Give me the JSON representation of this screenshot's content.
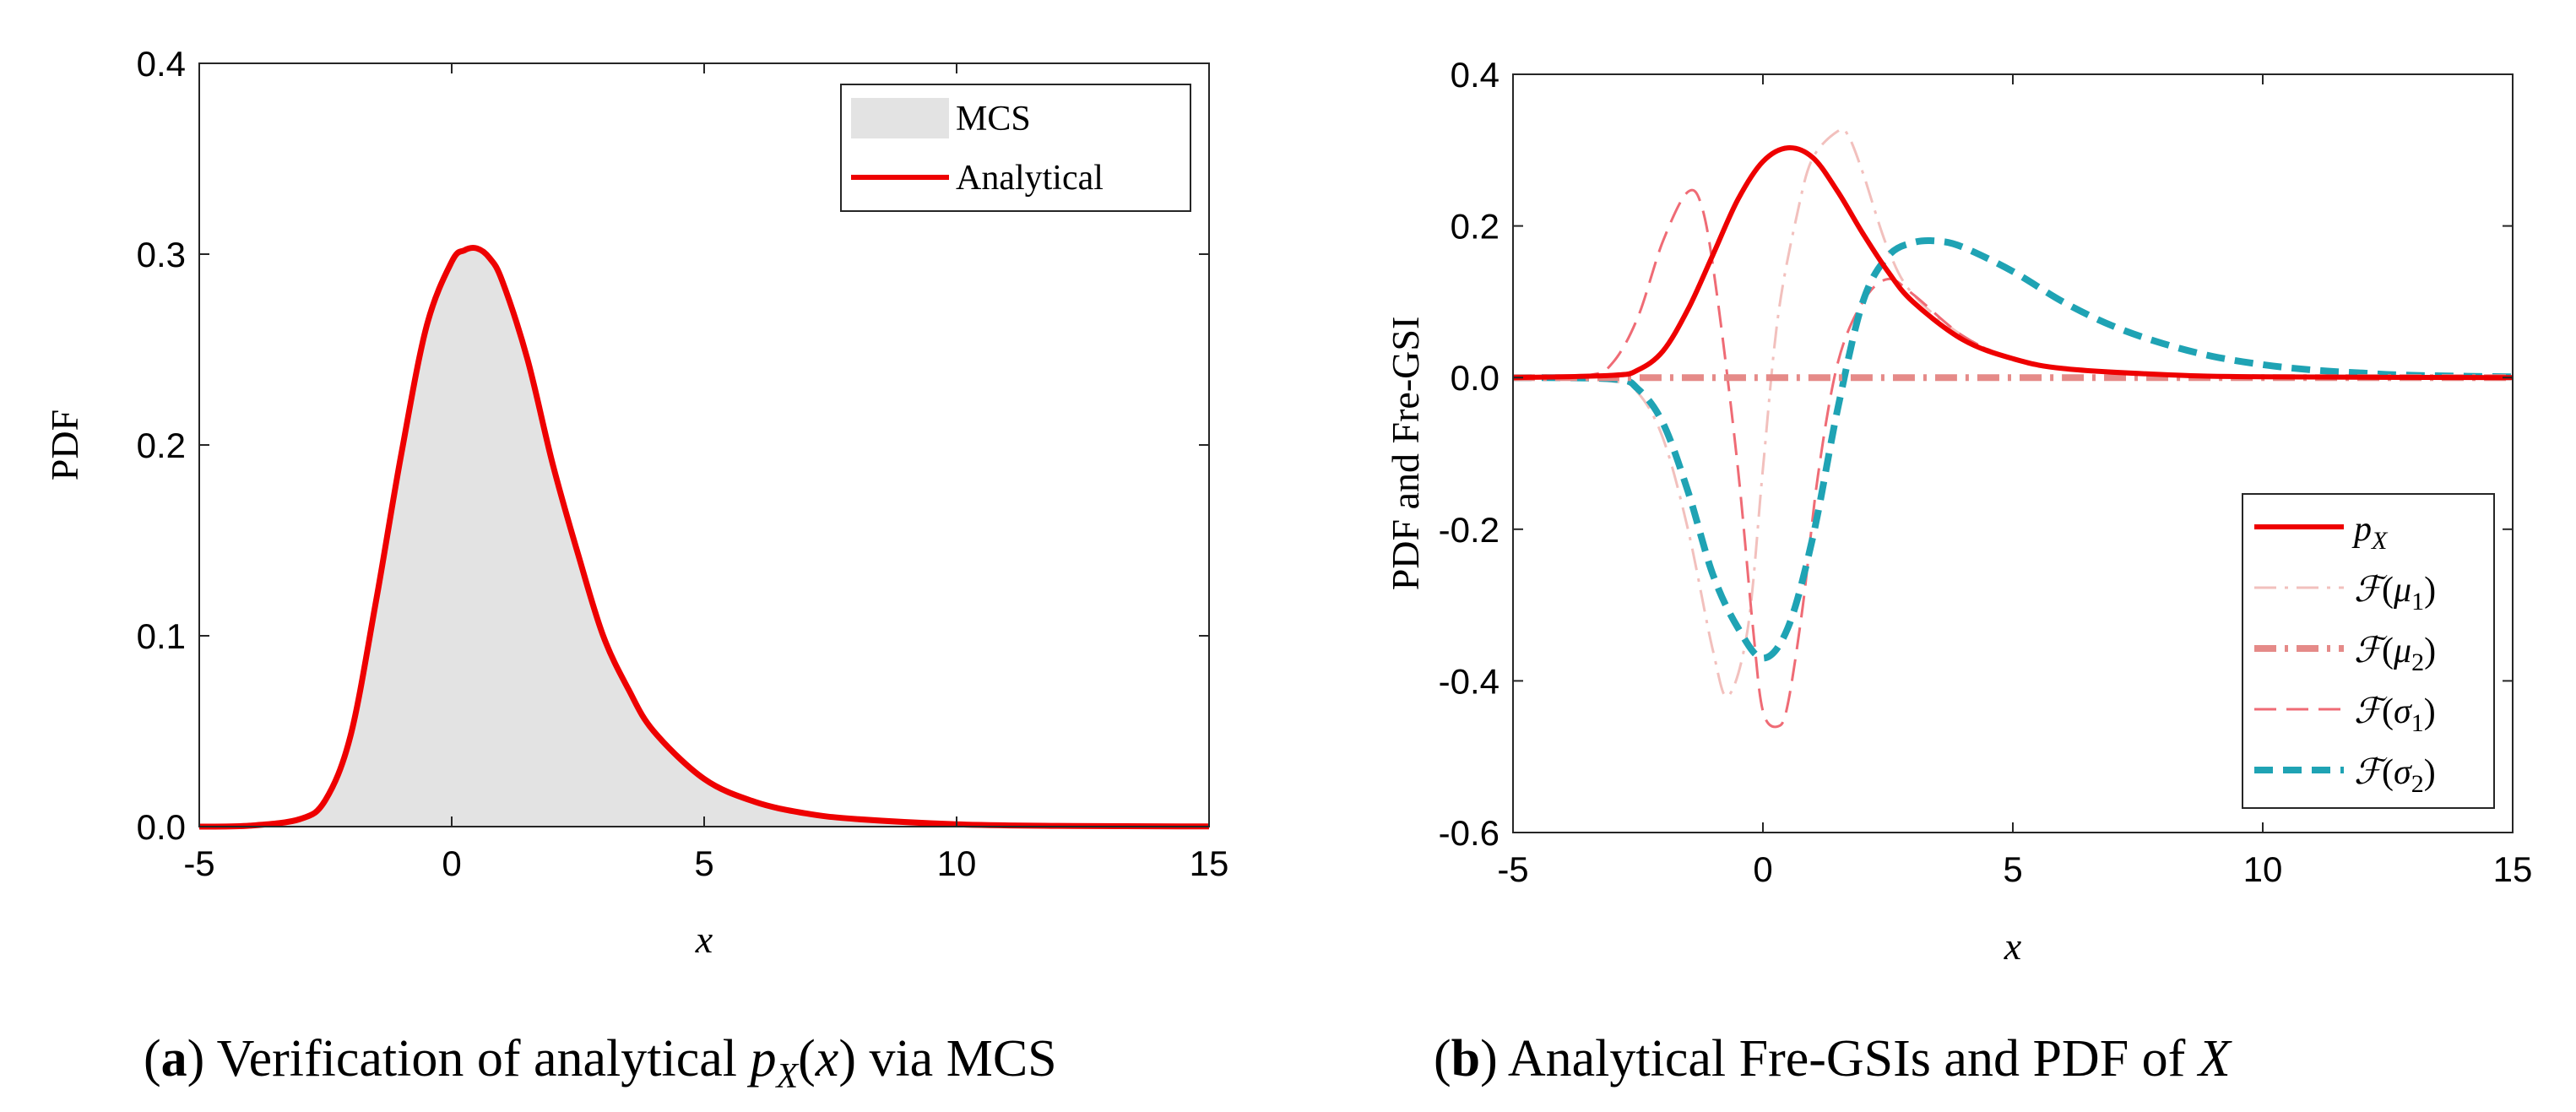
{
  "chart_data": [
    {
      "type": "area",
      "panel": "a",
      "caption_letter": "a",
      "caption_text": "Verification of analytical p_X(x) via MCS",
      "xlabel": "x",
      "ylabel": "PDF",
      "xlim": [
        -5,
        15
      ],
      "ylim": [
        0,
        0.4
      ],
      "xticks": [
        -5,
        0,
        5,
        10,
        15
      ],
      "xtick_labels": [
        "-5",
        "0",
        "5",
        "10",
        "15"
      ],
      "yticks": [
        0,
        0.1,
        0.2,
        0.3,
        0.4
      ],
      "ytick_labels": [
        "0.0",
        "0.1",
        "0.2",
        "0.3",
        "0.4"
      ],
      "legend_position": "top-right",
      "legend": [
        "MCS",
        "Analytical"
      ],
      "series": [
        {
          "name": "MCS",
          "style": "shaded histogram",
          "color": "#e3e3e3",
          "x": [
            -5,
            -4,
            -3,
            -2.5,
            -2,
            -1.5,
            -1,
            -0.5,
            0,
            0.25,
            0.5,
            0.75,
            1,
            1.5,
            2,
            2.5,
            3,
            3.5,
            4,
            5,
            6,
            7,
            8,
            10,
            12,
            15
          ],
          "values": [
            0,
            0.0005,
            0.004,
            0.014,
            0.048,
            0.118,
            0.195,
            0.262,
            0.296,
            0.302,
            0.303,
            0.298,
            0.286,
            0.245,
            0.19,
            0.143,
            0.1,
            0.072,
            0.05,
            0.025,
            0.013,
            0.007,
            0.004,
            0.0012,
            0.0004,
            0.0001
          ]
        },
        {
          "name": "Analytical",
          "style": "solid",
          "color": "#ee0000",
          "x": [
            -5,
            -4,
            -3,
            -2.5,
            -2,
            -1.5,
            -1,
            -0.5,
            0,
            0.25,
            0.5,
            0.75,
            1,
            1.5,
            2,
            2.5,
            3,
            3.5,
            4,
            5,
            6,
            7,
            8,
            10,
            12,
            15
          ],
          "values": [
            0,
            0.0005,
            0.004,
            0.014,
            0.048,
            0.118,
            0.195,
            0.262,
            0.296,
            0.302,
            0.303,
            0.298,
            0.286,
            0.245,
            0.19,
            0.143,
            0.1,
            0.072,
            0.05,
            0.025,
            0.013,
            0.007,
            0.004,
            0.0012,
            0.0004,
            0.0001
          ]
        }
      ]
    },
    {
      "type": "line",
      "panel": "b",
      "caption_letter": "b",
      "caption_text": "Analytical Fre-GSIs and PDF of X",
      "xlabel": "x",
      "ylabel": "PDF and Fre-GSI",
      "xlim": [
        -5,
        15
      ],
      "ylim": [
        -0.6,
        0.4
      ],
      "xticks": [
        -5,
        0,
        5,
        10,
        15
      ],
      "xtick_labels": [
        "-5",
        "0",
        "5",
        "10",
        "15"
      ],
      "yticks": [
        -0.6,
        -0.4,
        -0.2,
        0,
        0.2,
        0.4
      ],
      "ytick_labels": [
        "-0.6",
        "-0.4",
        "-0.2",
        "0.0",
        "0.2",
        "0.4"
      ],
      "legend_position": "bottom-right",
      "legend": [
        "p_X",
        "F(μ1)",
        "F(μ2)",
        "F(σ1)",
        "F(σ2)"
      ],
      "series": [
        {
          "name": "p_X",
          "style": "solid",
          "color": "#ee0000",
          "x": [
            -5,
            -3,
            -2.5,
            -2,
            -1.5,
            -1,
            -0.5,
            0,
            0.5,
            1,
            1.5,
            2,
            2.5,
            3,
            4,
            5,
            6,
            8,
            10,
            15
          ],
          "values": [
            0,
            0.003,
            0.01,
            0.035,
            0.09,
            0.162,
            0.235,
            0.285,
            0.303,
            0.29,
            0.245,
            0.19,
            0.14,
            0.1,
            0.05,
            0.025,
            0.012,
            0.004,
            0.001,
            0
          ]
        },
        {
          "name": "F(μ1)",
          "style": "dashdot",
          "color": "#f2c0bd",
          "x": [
            -5,
            -3,
            -2.5,
            -2,
            -1.5,
            -1,
            -0.7,
            -0.3,
            0,
            0.3,
            0.7,
            1,
            1.5,
            1.7,
            2,
            2.5,
            3,
            4,
            5,
            6,
            8,
            10,
            15
          ],
          "values": [
            0,
            -0.005,
            -0.02,
            -0.08,
            -0.2,
            -0.36,
            -0.42,
            -0.33,
            -0.12,
            0.08,
            0.22,
            0.29,
            0.325,
            0.32,
            0.27,
            0.17,
            0.11,
            0.055,
            0.025,
            0.012,
            0.004,
            0.001,
            0
          ]
        },
        {
          "name": "F(μ2)",
          "style": "dashdot thick",
          "color": "#e58a88",
          "x": [
            -5,
            15
          ],
          "values": [
            0,
            0
          ]
        },
        {
          "name": "F(σ1)",
          "style": "dashed",
          "color": "#ef6b75",
          "x": [
            -5,
            -3.5,
            -3,
            -2.5,
            -2,
            -1.5,
            -1.2,
            -0.9,
            -0.5,
            -0.2,
            0,
            0.3,
            0.5,
            0.8,
            1.1,
            1.5,
            2,
            2.5,
            3,
            4,
            5,
            6,
            8,
            10,
            15
          ],
          "values": [
            0,
            0.003,
            0.02,
            0.08,
            0.18,
            0.245,
            0.22,
            0.1,
            -0.12,
            -0.33,
            -0.44,
            -0.46,
            -0.43,
            -0.3,
            -0.13,
            0.02,
            0.1,
            0.13,
            0.11,
            0.055,
            0.025,
            0.012,
            0.004,
            0.001,
            0
          ]
        },
        {
          "name": "F(σ2)",
          "style": "dashed thick",
          "color": "#1fa3b4",
          "x": [
            -5,
            -3,
            -2.5,
            -2,
            -1.5,
            -1,
            -0.5,
            0,
            0.5,
            1,
            1.5,
            2,
            2.5,
            3,
            3.5,
            4,
            5,
            6,
            7,
            8,
            9,
            10,
            11,
            12,
            13,
            15
          ],
          "values": [
            0,
            -0.002,
            -0.015,
            -0.06,
            -0.15,
            -0.26,
            -0.33,
            -0.37,
            -0.33,
            -0.21,
            -0.04,
            0.1,
            0.16,
            0.178,
            0.18,
            0.172,
            0.14,
            0.1,
            0.068,
            0.045,
            0.028,
            0.017,
            0.01,
            0.006,
            0.003,
            0.001
          ]
        }
      ]
    }
  ]
}
